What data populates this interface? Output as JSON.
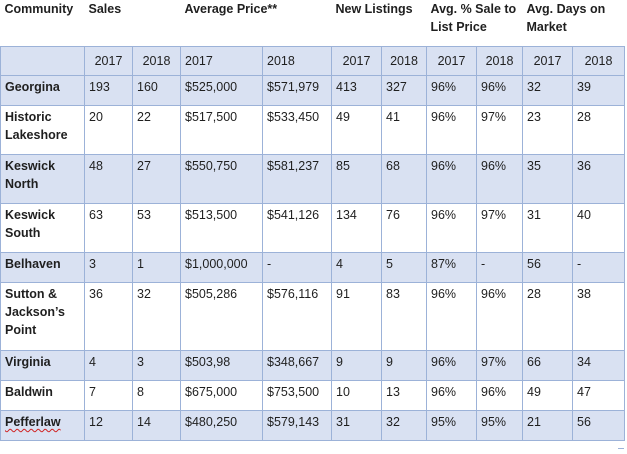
{
  "headers": {
    "community": "Community",
    "sales": "Sales",
    "avg_price": "Average Price**",
    "new_listings": "New Listings",
    "sale_to_list": "Avg. % Sale to List Price",
    "days_on_market": "Avg. Days on Market"
  },
  "years": [
    "2017",
    "2018",
    "2017",
    "2018",
    "2017",
    "2018",
    "2017",
    "2018",
    "2017",
    "2018"
  ],
  "rows": [
    {
      "community": "Georgina",
      "sales_2017": "193",
      "sales_2018": "160",
      "price_2017": "$525,000",
      "price_2018": "$571,979",
      "listings_2017": "413",
      "listings_2018": "327",
      "ratio_2017": "96%",
      "ratio_2018": "96%",
      "dom_2017": "32",
      "dom_2018": "39"
    },
    {
      "community": "Historic Lakeshore",
      "sales_2017": "20",
      "sales_2018": "22",
      "price_2017": "$517,500",
      "price_2018": "$533,450",
      "listings_2017": "49",
      "listings_2018": "41",
      "ratio_2017": "96%",
      "ratio_2018": "97%",
      "dom_2017": "23",
      "dom_2018": "28"
    },
    {
      "community": "Keswick North",
      "sales_2017": "48",
      "sales_2018": "27",
      "price_2017": "$550,750",
      "price_2018": "$581,237",
      "listings_2017": "85",
      "listings_2018": "68",
      "ratio_2017": "96%",
      "ratio_2018": "96%",
      "dom_2017": "35",
      "dom_2018": "36"
    },
    {
      "community": "Keswick South",
      "sales_2017": "63",
      "sales_2018": "53",
      "price_2017": "$513,500",
      "price_2018": "$541,126",
      "listings_2017": "134",
      "listings_2018": "76",
      "ratio_2017": "96%",
      "ratio_2018": "97%",
      "dom_2017": "31",
      "dom_2018": "40"
    },
    {
      "community": "Belhaven",
      "sales_2017": "3",
      "sales_2018": "1",
      "price_2017": "$1,000,000",
      "price_2018": "-",
      "listings_2017": "4",
      "listings_2018": "5",
      "ratio_2017": "87%",
      "ratio_2018": "-",
      "dom_2017": "56",
      "dom_2018": "-"
    },
    {
      "community": "Sutton & Jackson’s Point",
      "sales_2017": "36",
      "sales_2018": "32",
      "price_2017": "$505,286",
      "price_2018": "$576,116",
      "listings_2017": "91",
      "listings_2018": "83",
      "ratio_2017": "96%",
      "ratio_2018": "96%",
      "dom_2017": "28",
      "dom_2018": "38"
    },
    {
      "community": "Virginia",
      "sales_2017": "4",
      "sales_2018": "3",
      "price_2017": "$503,98",
      "price_2018": "$348,667",
      "listings_2017": "9",
      "listings_2018": "9",
      "ratio_2017": "96%",
      "ratio_2018": "97%",
      "dom_2017": "66",
      "dom_2018": "34"
    },
    {
      "community": "Baldwin",
      "sales_2017": "7",
      "sales_2018": "8",
      "price_2017": "$675,000",
      "price_2018": "$753,500",
      "listings_2017": "10",
      "listings_2018": "13",
      "ratio_2017": "96%",
      "ratio_2018": "96%",
      "dom_2017": "49",
      "dom_2018": "47"
    },
    {
      "community": "Pefferlaw",
      "sales_2017": "12",
      "sales_2018": "14",
      "price_2017": "$480,250",
      "price_2018": "$579,143",
      "listings_2017": "31",
      "listings_2018": "32",
      "ratio_2017": "95%",
      "ratio_2018": "95%",
      "dom_2017": "21",
      "dom_2018": "56"
    }
  ],
  "colors": {
    "band": "#d9e1f2",
    "border": "#9cb2d8",
    "spellcheck_underline": "#d02020"
  }
}
